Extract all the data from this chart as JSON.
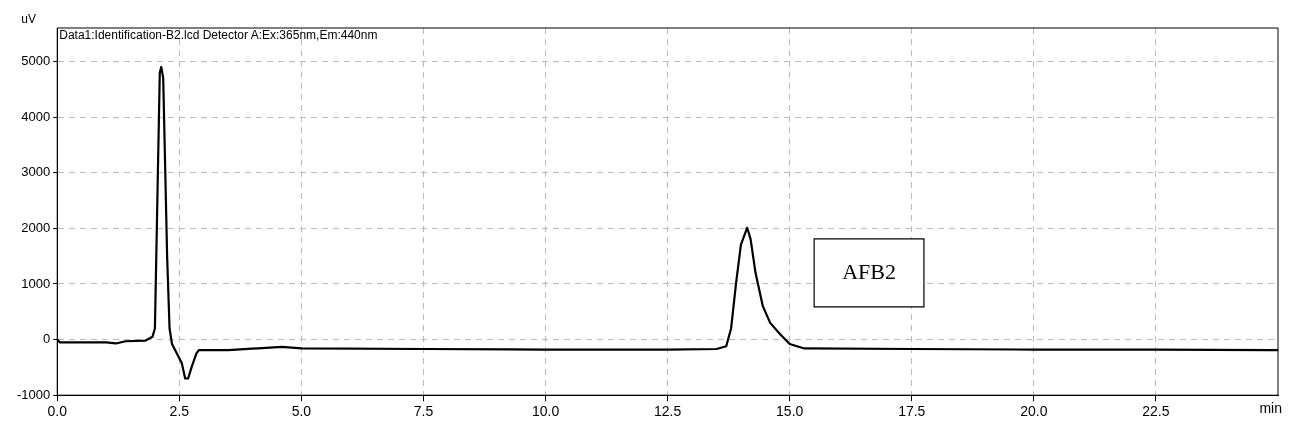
{
  "chart_data": {
    "type": "line",
    "title": "Data1:Identification-B2.lcd Detector A:Ex:365nm,Em:440nm",
    "xlabel": "min",
    "ylabel": "uV",
    "x": [
      0,
      0.05,
      0.3,
      1.0,
      1.2,
      1.4,
      1.8,
      1.95,
      2.0,
      2.05,
      2.1,
      2.13,
      2.17,
      2.2,
      2.25,
      2.3,
      2.35,
      2.45,
      2.55,
      2.62,
      2.68,
      2.75,
      2.85,
      2.9,
      3.5,
      4.6,
      5.0,
      7.5,
      10,
      12.5,
      13.5,
      13.7,
      13.8,
      13.9,
      14.0,
      14.13,
      14.2,
      14.3,
      14.45,
      14.6,
      14.8,
      15.0,
      15.3,
      17.5,
      20,
      22.5,
      25
    ],
    "series": [
      {
        "color": "#000000",
        "values": [
          0,
          -50,
          -50,
          -50,
          -70,
          -30,
          -20,
          50,
          200,
          2500,
          4800,
          4900,
          4700,
          3500,
          1500,
          200,
          -80,
          -250,
          -420,
          -700,
          -700,
          -500,
          -250,
          -190,
          -190,
          -130,
          -160,
          -170,
          -180,
          -180,
          -170,
          -120,
          200,
          1000,
          1700,
          2010,
          1800,
          1200,
          600,
          300,
          100,
          -80,
          -160,
          -170,
          -180,
          -180,
          -190
        ]
      }
    ],
    "xlim": [
      0,
      25
    ],
    "xticks": [
      {
        "value": 0,
        "label": "0.0"
      },
      {
        "value": 2.5,
        "label": "2.5"
      },
      {
        "value": 5,
        "label": "5.0"
      },
      {
        "value": 7.5,
        "label": "7.5"
      },
      {
        "value": 10,
        "label": "10.0"
      },
      {
        "value": 12.5,
        "label": "12.5"
      },
      {
        "value": 15,
        "label": "15.0"
      },
      {
        "value": 17.5,
        "label": "17.5"
      },
      {
        "value": 20,
        "label": "20.0"
      },
      {
        "value": 22.5,
        "label": "22.5"
      }
    ],
    "ylim": [
      -1000,
      5600
    ],
    "yticks": [
      -1000,
      0,
      1000,
      2000,
      3000,
      4000,
      5000
    ],
    "annotations": [
      "AFB2"
    ],
    "grid": true,
    "legend": false,
    "marker": "none",
    "line_style": "solid"
  }
}
